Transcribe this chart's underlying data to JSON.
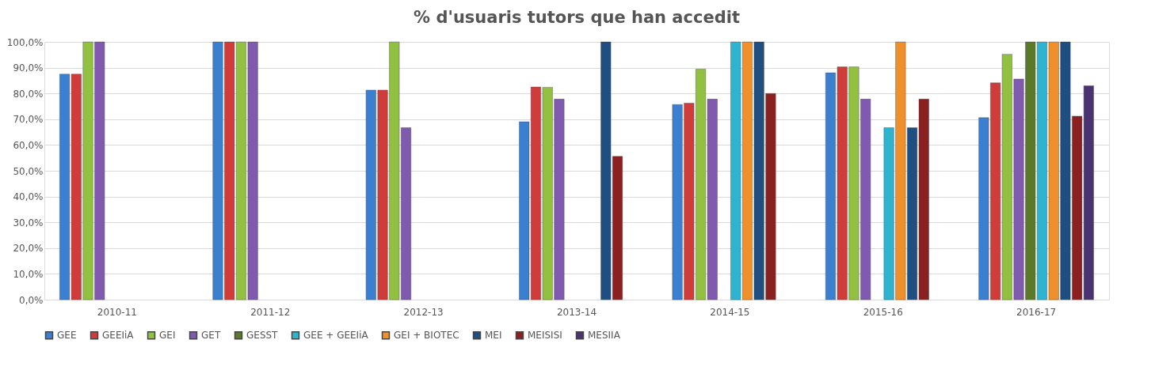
{
  "chart_data": {
    "type": "bar",
    "title": "% d'usuaris tutors que han accedit",
    "categories": [
      "2010-11",
      "2011-12",
      "2012-13",
      "2013-14",
      "2014-15",
      "2015-16",
      "2016-17"
    ],
    "series": [
      {
        "name": "GEE",
        "color": "#3a7fd0",
        "values": [
          87.5,
          100,
          81.3,
          69,
          75.7,
          88,
          70.6
        ]
      },
      {
        "name": "GEEIiA",
        "color": "#d03c3a",
        "values": [
          87.5,
          100,
          81.3,
          82.5,
          76.2,
          90.3,
          84.1
        ]
      },
      {
        "name": "GEI",
        "color": "#92c040",
        "values": [
          100,
          100,
          100,
          82.4,
          89.4,
          90.3,
          95.2
        ]
      },
      {
        "name": "GET",
        "color": "#7f5aaf",
        "values": [
          100,
          100,
          66.7,
          77.8,
          77.8,
          77.8,
          85.6
        ]
      },
      {
        "name": "GESST",
        "color": "#5a7a2a",
        "values": [
          null,
          null,
          null,
          null,
          null,
          null,
          100
        ]
      },
      {
        "name": "GEE + GEEIiA",
        "color": "#2eb4d0",
        "values": [
          null,
          null,
          null,
          null,
          100,
          66.7,
          100
        ]
      },
      {
        "name": "GEI + BIOTEC",
        "color": "#f0902a",
        "values": [
          null,
          null,
          null,
          null,
          100,
          100,
          100
        ]
      },
      {
        "name": "MEI",
        "color": "#1f4e80",
        "values": [
          null,
          null,
          null,
          100,
          100,
          66.7,
          100
        ]
      },
      {
        "name": "MEISISI",
        "color": "#8a2020",
        "values": [
          null,
          null,
          null,
          55.6,
          80,
          77.8,
          71.2
        ]
      },
      {
        "name": "MESIIA",
        "color": "#4a3370",
        "values": [
          null,
          null,
          null,
          null,
          null,
          null,
          83
        ]
      }
    ],
    "ylim": [
      0,
      100
    ],
    "yticks": [
      {
        "value": 0,
        "label": "0,0%"
      },
      {
        "value": 10,
        "label": "10,0%"
      },
      {
        "value": 20,
        "label": "20,0%"
      },
      {
        "value": 30,
        "label": "30,0%"
      },
      {
        "value": 40,
        "label": "40,0%"
      },
      {
        "value": 50,
        "label": "50,0%"
      },
      {
        "value": 60,
        "label": "60,0%"
      },
      {
        "value": 70,
        "label": "70,0%"
      },
      {
        "value": 80,
        "label": "80,0%"
      },
      {
        "value": 90,
        "label": "90,0%"
      },
      {
        "value": 100,
        "label": "100,0%"
      }
    ],
    "grid": "y",
    "legend": "bottom"
  }
}
